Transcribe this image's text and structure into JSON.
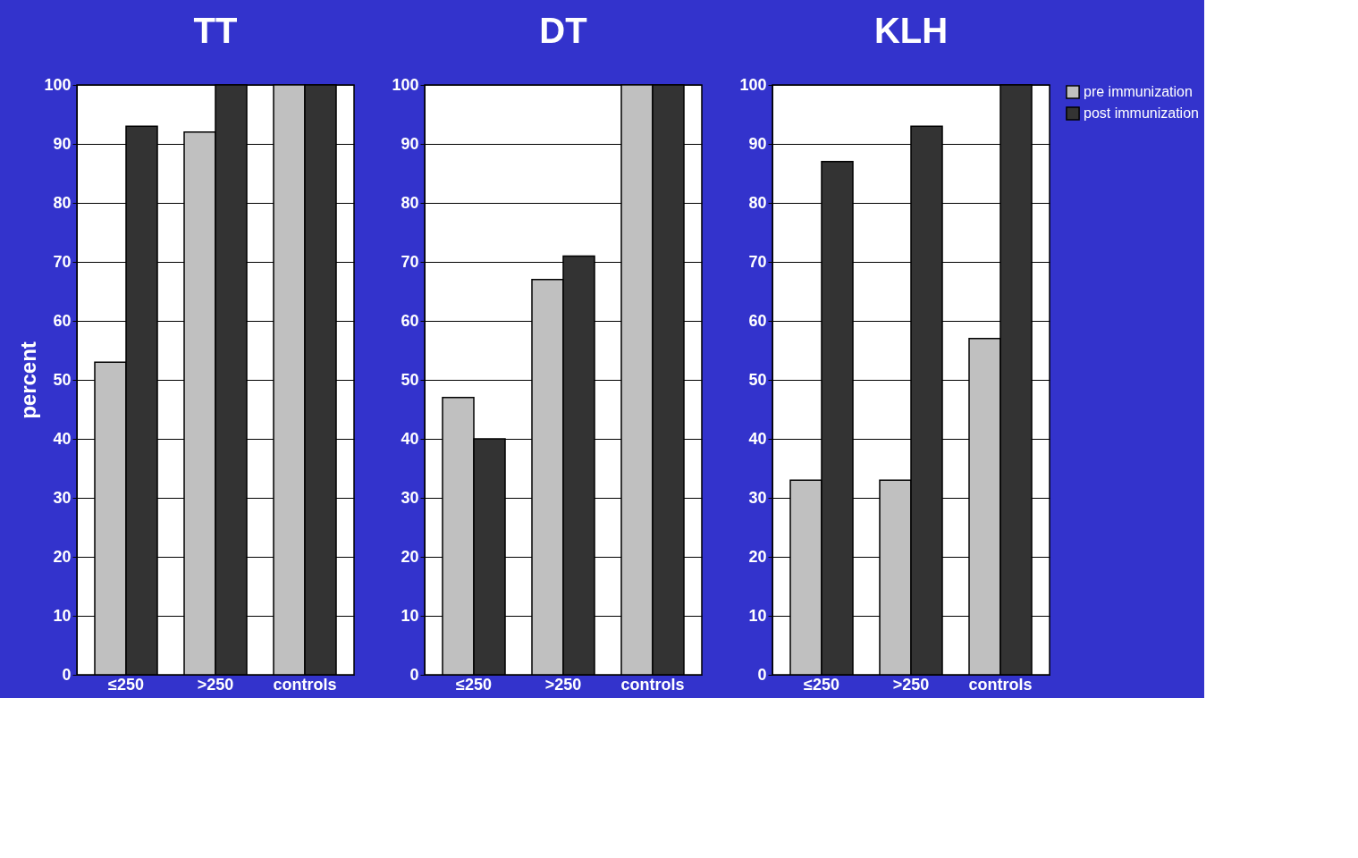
{
  "chart_data": [
    {
      "type": "bar",
      "title": "TT",
      "ylabel": "percent",
      "categories": [
        "≤250",
        ">250",
        "controls"
      ],
      "series": [
        {
          "color": "#c0c0c0",
          "values": [
            53,
            92,
            100
          ]
        },
        {
          "color": "#333333",
          "values": [
            93,
            100,
            100
          ]
        }
      ],
      "ylim": [
        0,
        100
      ],
      "yticks": [
        0,
        10,
        20,
        30,
        40,
        50,
        60,
        70,
        80,
        90,
        100
      ],
      "grid": "y",
      "legend": false
    },
    {
      "type": "bar",
      "title": "DT",
      "categories": [
        "≤250",
        ">250",
        "controls"
      ],
      "series": [
        {
          "color": "#c0c0c0",
          "values": [
            47,
            67,
            100
          ]
        },
        {
          "color": "#333333",
          "values": [
            40,
            71,
            100
          ]
        }
      ],
      "ylim": [
        0,
        100
      ],
      "yticks": [
        0,
        10,
        20,
        30,
        40,
        50,
        60,
        70,
        80,
        90,
        100
      ],
      "grid": "y",
      "legend": false
    },
    {
      "type": "bar",
      "title": "KLH",
      "categories": [
        "≤250",
        ">250",
        "controls"
      ],
      "series": [
        {
          "name": "pre immunization",
          "color": "#c0c0c0",
          "values": [
            33,
            33,
            57
          ]
        },
        {
          "name": "post immunization",
          "color": "#333333",
          "values": [
            87,
            93,
            100
          ]
        }
      ],
      "ylim": [
        0,
        100
      ],
      "yticks": [
        0,
        10,
        20,
        30,
        40,
        50,
        60,
        70,
        80,
        90,
        100
      ],
      "grid": "y",
      "legend": "right"
    }
  ]
}
